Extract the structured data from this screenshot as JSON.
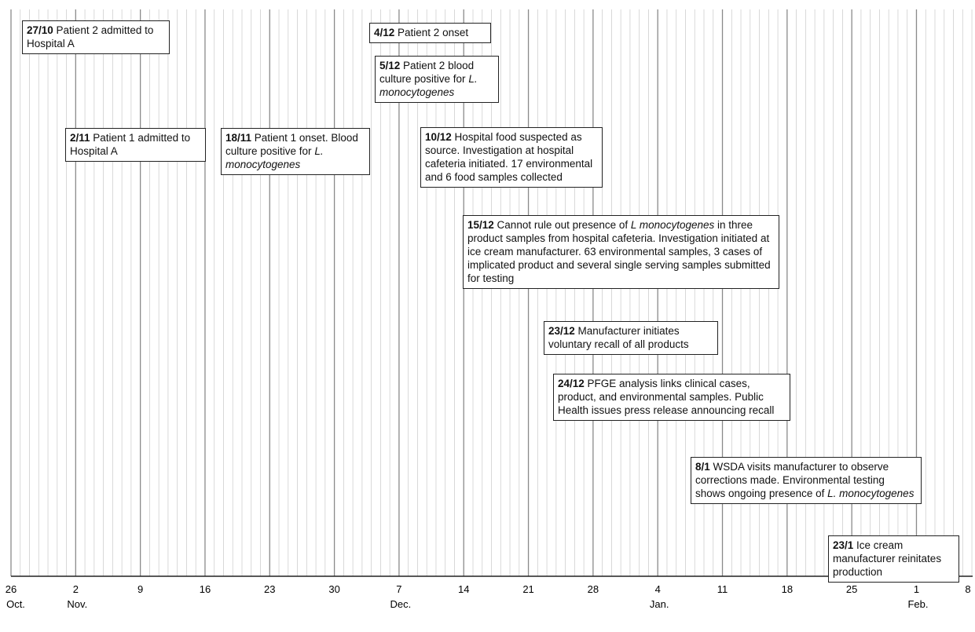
{
  "axis": {
    "ticks": [
      {
        "label": "26",
        "month": "Oct."
      },
      {
        "label": "2",
        "month": "Nov."
      },
      {
        "label": "9",
        "month": ""
      },
      {
        "label": "16",
        "month": ""
      },
      {
        "label": "23",
        "month": ""
      },
      {
        "label": "30",
        "month": ""
      },
      {
        "label": "7",
        "month": "Dec."
      },
      {
        "label": "14",
        "month": ""
      },
      {
        "label": "21",
        "month": ""
      },
      {
        "label": "28",
        "month": ""
      },
      {
        "label": "4",
        "month": "Jan."
      },
      {
        "label": "11",
        "month": ""
      },
      {
        "label": "18",
        "month": ""
      },
      {
        "label": "25",
        "month": ""
      },
      {
        "label": "1",
        "month": "Feb."
      },
      {
        "label": "8",
        "month": ""
      }
    ]
  },
  "events": [
    {
      "date": "27/10",
      "text": " Patient 2 admitted to Hospital A",
      "italic": ""
    },
    {
      "date": "4/12",
      "text": " Patient 2 onset",
      "italic": ""
    },
    {
      "date": "5/12",
      "text": " Patient 2 blood culture positive for ",
      "italic": "L. monocytogenes"
    },
    {
      "date": "2/11",
      "text": " Patient 1 admitted to Hospital A",
      "italic": ""
    },
    {
      "date": "18/11",
      "text": " Patient 1 onset. Blood culture positive for ",
      "italic": "L. monocytogenes"
    },
    {
      "date": "10/12",
      "text": " Hospital food suspected as source. Investigation at hospital cafeteria initiated. 17 environmental and 6 food samples collected",
      "italic": ""
    },
    {
      "date": "15/12",
      "text": " Cannot rule out presence of ",
      "italic": "L monocytogenes",
      "text2": " in three product samples from hospital cafeteria. Investigation initiated at ice cream manufacturer. 63 environmental samples, 3 cases of implicated product and several single serving samples submitted for testing"
    },
    {
      "date": "23/12",
      "text": " Manufacturer initiates voluntary recall of all products",
      "italic": ""
    },
    {
      "date": "24/12",
      "text": " PFGE analysis links clinical cases, product, and environmental samples. Public Health issues press release announcing recall",
      "italic": ""
    },
    {
      "date": "8/1",
      "text": " WSDA visits manufacturer to observe corrections made. Environmental testing shows ongoing presence of ",
      "italic": "L. monocytogenes"
    },
    {
      "date": "23/1",
      "text": " Ice cream manufacturer reinitates production",
      "italic": ""
    }
  ]
}
